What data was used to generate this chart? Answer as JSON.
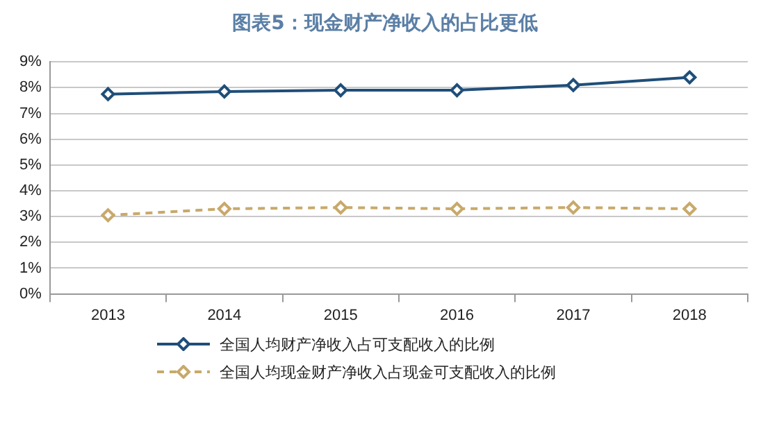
{
  "chart_data": {
    "type": "line",
    "title": "图表5：现金财产净收入的占比更低",
    "categories": [
      "2013",
      "2014",
      "2015",
      "2016",
      "2017",
      "2018"
    ],
    "series": [
      {
        "name": "全国人均财产净收入占可支配收入的比例",
        "color": "#1f4e79",
        "values": [
          7.75,
          7.85,
          7.9,
          7.9,
          8.1,
          8.4
        ],
        "line_style": "solid"
      },
      {
        "name": "全国人均现金财产净收入占现金可支配收入的比例",
        "color": "#c8a96a",
        "values": [
          3.05,
          3.3,
          3.35,
          3.3,
          3.35,
          3.3
        ],
        "line_style": "dashed"
      }
    ],
    "ylim": [
      0,
      9
    ],
    "yticks": [
      {
        "value": 0,
        "label": "0%"
      },
      {
        "value": 1,
        "label": "1%"
      },
      {
        "value": 2,
        "label": "2%"
      },
      {
        "value": 3,
        "label": "3%"
      },
      {
        "value": 4,
        "label": "4%"
      },
      {
        "value": 5,
        "label": "5%"
      },
      {
        "value": 6,
        "label": "6%"
      },
      {
        "value": 7,
        "label": "7%"
      },
      {
        "value": 8,
        "label": "8%"
      },
      {
        "value": 9,
        "label": "9%"
      }
    ],
    "grid": "y",
    "legend": "bottom",
    "marker": "diamond"
  }
}
